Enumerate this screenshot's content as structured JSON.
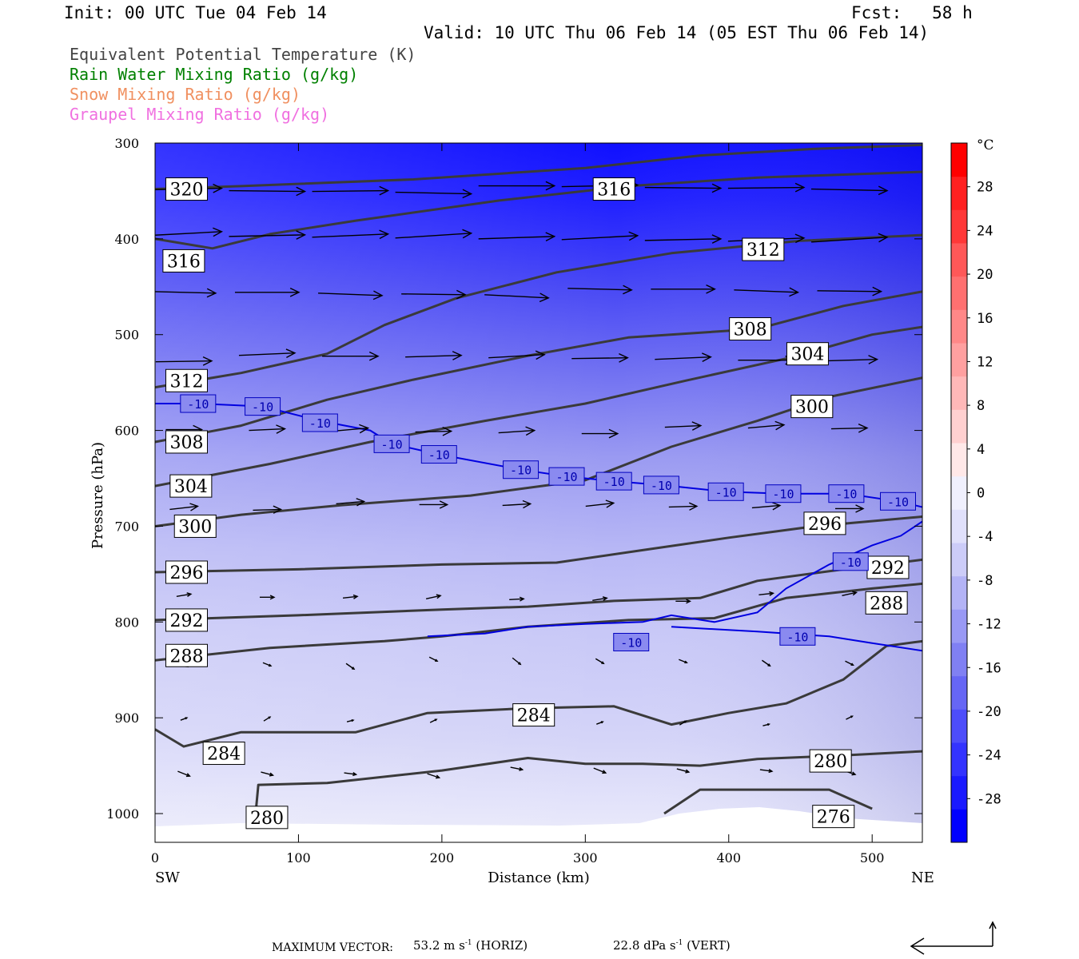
{
  "header": {
    "init": "Init: 00 UTC Tue 04 Feb 14",
    "fcst": "Fcst:   58 h",
    "valid": "Valid: 10 UTC Thu 06 Feb 14 (05 EST Thu 06 Feb 14)"
  },
  "legend": [
    {
      "label": "Equivalent Potential Temperature (K)",
      "color": "#444444"
    },
    {
      "label": "Rain Water Mixing Ratio (g/kg)",
      "color": "#008000"
    },
    {
      "label": "Snow Mixing Ratio (g/kg)",
      "color": "#f09060"
    },
    {
      "label": "Graupel Mixing Ratio (g/kg)",
      "color": "#f070e0"
    }
  ],
  "footer": {
    "max_vector_label": "MAXIMUM VECTOR:",
    "horiz_value": "53.2 m s",
    "horiz_unit": "-1",
    "horiz_tag": "(HORIZ)",
    "vert_value": "22.8 dPa s",
    "vert_unit": "-1",
    "vert_tag": "(VERT)"
  },
  "chart_data": {
    "type": "cross-section",
    "xlabel": "Distance (km)",
    "ylabel": "Pressure (hPa)",
    "x_ticks": [
      "0",
      "100",
      "200",
      "300",
      "400",
      "500"
    ],
    "xlim": [
      0,
      535
    ],
    "y_ticks": [
      "300",
      "400",
      "500",
      "600",
      "700",
      "800",
      "900",
      "1000"
    ],
    "ylim": [
      300,
      1030
    ],
    "x_left_label": "SW",
    "x_right_label": "NE",
    "colorbar": {
      "unit": "°C",
      "ticks": [
        "28",
        "24",
        "20",
        "16",
        "12",
        "8",
        "4",
        "0",
        "-4",
        "-8",
        "-12",
        "-16",
        "-20",
        "-24",
        "-28"
      ],
      "range": [
        -32,
        32
      ],
      "colors": [
        "#0000ff",
        "#1a1aff",
        "#3333ff",
        "#4d4dfa",
        "#6666f5",
        "#8080f3",
        "#9999f4",
        "#b3b3f6",
        "#ccccf8",
        "#e0e0fb",
        "#f0f0fd",
        "#ffe8e8",
        "#ffd0d0",
        "#ffb8b8",
        "#ffa0a0",
        "#ff8888",
        "#ff7070",
        "#ff5858",
        "#ff3838",
        "#ff2020",
        "#ff0000"
      ]
    },
    "theta_e_contours": [
      {
        "label": "320",
        "label_pos": [
          22,
          348
        ],
        "points": [
          [
            0,
            348
          ],
          [
            60,
            345
          ],
          [
            180,
            338
          ],
          [
            300,
            326
          ],
          [
            380,
            313
          ],
          [
            460,
            306
          ],
          [
            535,
            302
          ]
        ]
      },
      {
        "label": "316",
        "label_pos": [
          20,
          423
        ],
        "points": [
          [
            0,
            400
          ],
          [
            40,
            410
          ],
          [
            80,
            395
          ],
          [
            140,
            381
          ],
          [
            240,
            360
          ],
          [
            330,
            345
          ],
          [
            420,
            336
          ],
          [
            535,
            330
          ]
        ]
      },
      {
        "label": "316",
        "label_pos": [
          320,
          348
        ],
        "points": []
      },
      {
        "label": "312",
        "label_pos": [
          22,
          548
        ],
        "points": [
          [
            0,
            555
          ],
          [
            60,
            540
          ],
          [
            120,
            520
          ],
          [
            160,
            490
          ],
          [
            210,
            462
          ],
          [
            280,
            435
          ],
          [
            360,
            415
          ],
          [
            450,
            402
          ],
          [
            535,
            396
          ]
        ]
      },
      {
        "label": "312",
        "label_pos": [
          424,
          411
        ],
        "points": []
      },
      {
        "label": "308",
        "label_pos": [
          22,
          612
        ],
        "points": [
          [
            0,
            612
          ],
          [
            60,
            595
          ],
          [
            120,
            568
          ],
          [
            180,
            547
          ],
          [
            260,
            522
          ],
          [
            330,
            503
          ],
          [
            420,
            494
          ],
          [
            480,
            470
          ],
          [
            535,
            455
          ]
        ]
      },
      {
        "label": "308",
        "label_pos": [
          415,
          494
        ],
        "points": []
      },
      {
        "label": "304",
        "label_pos": [
          25,
          658
        ],
        "points": [
          [
            0,
            658
          ],
          [
            80,
            635
          ],
          [
            150,
            612
          ],
          [
            230,
            590
          ],
          [
            300,
            572
          ],
          [
            370,
            548
          ],
          [
            440,
            525
          ],
          [
            500,
            500
          ],
          [
            535,
            492
          ]
        ]
      },
      {
        "label": "304",
        "label_pos": [
          455,
          520
        ],
        "points": []
      },
      {
        "label": "300",
        "label_pos": [
          28,
          700
        ],
        "points": [
          [
            0,
            700
          ],
          [
            60,
            688
          ],
          [
            130,
            678
          ],
          [
            220,
            668
          ],
          [
            300,
            652
          ],
          [
            360,
            617
          ],
          [
            420,
            590
          ],
          [
            470,
            565
          ],
          [
            535,
            545
          ]
        ]
      },
      {
        "label": "300",
        "label_pos": [
          458,
          575
        ],
        "points": []
      },
      {
        "label": "296",
        "label_pos": [
          22,
          748
        ],
        "points": [
          [
            0,
            748
          ],
          [
            100,
            745
          ],
          [
            200,
            740
          ],
          [
            280,
            738
          ],
          [
            340,
            725
          ],
          [
            400,
            712
          ],
          [
            460,
            700
          ],
          [
            535,
            690
          ]
        ]
      },
      {
        "label": "296",
        "label_pos": [
          467,
          697
        ],
        "points": []
      },
      {
        "label": "292",
        "label_pos": [
          22,
          798
        ],
        "points": [
          [
            0,
            798
          ],
          [
            100,
            793
          ],
          [
            200,
            787
          ],
          [
            260,
            784
          ],
          [
            320,
            778
          ],
          [
            380,
            775
          ],
          [
            420,
            757
          ],
          [
            480,
            745
          ],
          [
            535,
            735
          ]
        ]
      },
      {
        "label": "292",
        "label_pos": [
          511,
          743
        ],
        "points": []
      },
      {
        "label": "288",
        "label_pos": [
          22,
          835
        ],
        "points": [
          [
            0,
            840
          ],
          [
            80,
            827
          ],
          [
            160,
            820
          ],
          [
            200,
            815
          ],
          [
            260,
            805
          ],
          [
            330,
            798
          ],
          [
            390,
            796
          ],
          [
            440,
            775
          ],
          [
            500,
            765
          ],
          [
            535,
            760
          ]
        ]
      },
      {
        "label": "288",
        "label_pos": [
          510,
          780
        ],
        "points": []
      },
      {
        "label": "284",
        "label_pos": [
          48,
          937
        ],
        "points": [
          [
            0,
            912
          ],
          [
            20,
            930
          ],
          [
            60,
            915
          ],
          [
            140,
            915
          ],
          [
            190,
            895
          ],
          [
            260,
            890
          ],
          [
            320,
            888
          ],
          [
            360,
            907
          ],
          [
            400,
            895
          ],
          [
            440,
            885
          ],
          [
            480,
            860
          ],
          [
            510,
            825
          ],
          [
            535,
            820
          ]
        ]
      },
      {
        "label": "284",
        "label_pos": [
          264,
          897
        ],
        "points": []
      },
      {
        "label": "280",
        "label_pos": [
          78,
          1004
        ],
        "points": [
          [
            70,
            1002
          ],
          [
            72,
            970
          ],
          [
            120,
            968
          ],
          [
            200,
            955
          ],
          [
            260,
            942
          ],
          [
            300,
            948
          ],
          [
            340,
            948
          ],
          [
            380,
            950
          ],
          [
            420,
            943
          ],
          [
            470,
            940
          ],
          [
            535,
            935
          ]
        ]
      },
      {
        "label": "280",
        "label_pos": [
          471,
          945
        ],
        "points": []
      },
      {
        "label": "276",
        "label_pos": [
          473,
          1003
        ],
        "points": [
          [
            355,
            1000
          ],
          [
            380,
            975
          ],
          [
            430,
            975
          ],
          [
            470,
            975
          ],
          [
            500,
            995
          ]
        ]
      }
    ],
    "minus10_isotherm": {
      "label": "-10",
      "label_positions": [
        [
          30,
          572
        ],
        [
          75,
          575
        ],
        [
          115,
          592
        ],
        [
          165,
          614
        ],
        [
          198,
          625
        ],
        [
          255,
          641
        ],
        [
          287,
          648
        ],
        [
          320,
          653
        ],
        [
          353,
          657
        ],
        [
          398,
          664
        ],
        [
          438,
          666
        ],
        [
          482,
          666
        ],
        [
          518,
          674
        ],
        [
          485,
          737
        ],
        [
          332,
          821
        ],
        [
          448,
          815
        ]
      ]
    }
  }
}
